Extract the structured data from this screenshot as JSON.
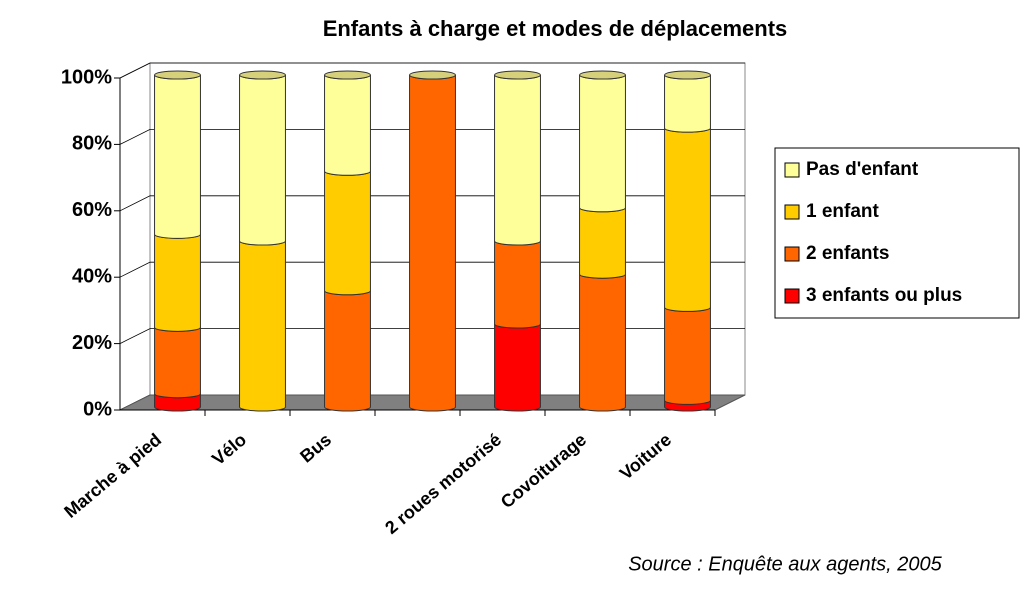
{
  "chart_data": {
    "type": "bar",
    "stacked": true,
    "title": "Enfants à charge et modes de déplacements",
    "categories": [
      "Marche à pied",
      "Vélo",
      "Bus",
      null,
      "2 roues motorisé",
      "Covoiturage",
      "Voiture"
    ],
    "series": [
      {
        "name": "3 enfants ou plus",
        "color": "#ff0000",
        "values": [
          4,
          0,
          0,
          0,
          25,
          0,
          2
        ]
      },
      {
        "name": "2 enfants",
        "color": "#ff6600",
        "values": [
          20,
          0,
          35,
          100,
          25,
          40,
          28
        ]
      },
      {
        "name": "1 enfant",
        "color": "#ffcc00",
        "values": [
          28,
          50,
          36,
          0,
          0,
          20,
          54
        ]
      },
      {
        "name": "Pas d'enfant",
        "color": "#ffff99",
        "values": [
          48,
          50,
          29,
          0,
          50,
          40,
          16
        ]
      }
    ],
    "ylim": [
      0,
      100
    ],
    "yticks": [
      {
        "value": 0,
        "label": "0%"
      },
      {
        "value": 20,
        "label": "20%"
      },
      {
        "value": 40,
        "label": "40%"
      },
      {
        "value": 60,
        "label": "60%"
      },
      {
        "value": 80,
        "label": "80%"
      },
      {
        "value": 100,
        "label": "100%"
      }
    ],
    "grid": true,
    "legend": "right",
    "annotation": "Source : Enquête aux agents, 2005"
  }
}
